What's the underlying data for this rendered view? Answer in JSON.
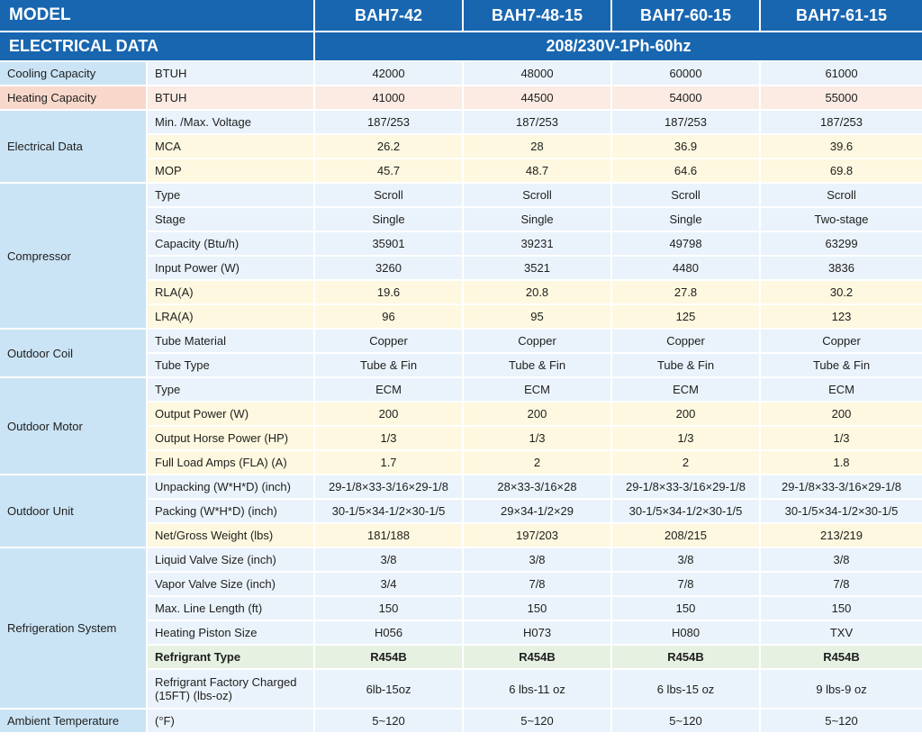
{
  "table": {
    "model_label": "MODEL",
    "models": [
      "BAH7-42",
      "BAH7-48-15",
      "BAH7-60-15",
      "BAH7-61-15"
    ],
    "electrical_label": "ELECTRICAL DATA",
    "electrical_value": "208/230V-1Ph-60hz",
    "groups": [
      {
        "name": "Cooling Capacity",
        "rows": [
          {
            "label": "BTUH",
            "values": [
              "42000",
              "48000",
              "60000",
              "61000"
            ]
          }
        ]
      },
      {
        "name": "Heating Capacity",
        "rows": [
          {
            "label": "BTUH",
            "values": [
              "41000",
              "44500",
              "54000",
              "55000"
            ]
          }
        ]
      },
      {
        "name": "Electrical Data",
        "rows": [
          {
            "label": "Min. /Max. Voltage",
            "values": [
              "187/253",
              "187/253",
              "187/253",
              "187/253"
            ]
          },
          {
            "label": "MCA",
            "values": [
              "26.2",
              "28",
              "36.9",
              "39.6"
            ]
          },
          {
            "label": "MOP",
            "values": [
              "45.7",
              "48.7",
              "64.6",
              "69.8"
            ]
          }
        ]
      },
      {
        "name": "Compressor",
        "rows": [
          {
            "label": "Type",
            "values": [
              "Scroll",
              "Scroll",
              "Scroll",
              "Scroll"
            ]
          },
          {
            "label": "Stage",
            "values": [
              "Single",
              "Single",
              "Single",
              "Two-stage"
            ]
          },
          {
            "label": "Capacity (Btu/h)",
            "values": [
              "35901",
              "39231",
              "49798",
              "63299"
            ]
          },
          {
            "label": "Input Power (W)",
            "values": [
              "3260",
              "3521",
              "4480",
              "3836"
            ]
          },
          {
            "label": "RLA(A)",
            "values": [
              "19.6",
              "20.8",
              "27.8",
              "30.2"
            ]
          },
          {
            "label": "LRA(A)",
            "values": [
              "96",
              "95",
              "125",
              "123"
            ]
          }
        ]
      },
      {
        "name": "Outdoor Coil",
        "rows": [
          {
            "label": "Tube Material",
            "values": [
              "Copper",
              "Copper",
              "Copper",
              "Copper"
            ]
          },
          {
            "label": "Tube Type",
            "values": [
              "Tube & Fin",
              "Tube & Fin",
              "Tube & Fin",
              "Tube & Fin"
            ]
          }
        ]
      },
      {
        "name": "Outdoor Motor",
        "rows": [
          {
            "label": "Type",
            "values": [
              "ECM",
              "ECM",
              "ECM",
              "ECM"
            ]
          },
          {
            "label": "Output Power (W)",
            "values": [
              "200",
              "200",
              "200",
              "200"
            ]
          },
          {
            "label": "Output Horse Power (HP)",
            "values": [
              "1/3",
              "1/3",
              "1/3",
              "1/3"
            ]
          },
          {
            "label": "Full Load Amps (FLA) (A)",
            "values": [
              "1.7",
              "2",
              "2",
              "1.8"
            ]
          }
        ]
      },
      {
        "name": "Outdoor Unit",
        "rows": [
          {
            "label": "Unpacking (W*H*D) (inch)",
            "values": [
              "29-1/8×33-3/16×29-1/8",
              "28×33-3/16×28",
              "29-1/8×33-3/16×29-1/8",
              "29-1/8×33-3/16×29-1/8"
            ]
          },
          {
            "label": "Packing  (W*H*D) (inch)",
            "values": [
              "30-1/5×34-1/2×30-1/5",
              "29×34-1/2×29",
              "30-1/5×34-1/2×30-1/5",
              "30-1/5×34-1/2×30-1/5"
            ]
          },
          {
            "label": "Net/Gross Weight  (lbs)",
            "values": [
              "181/188",
              "197/203",
              "208/215",
              "213/219"
            ]
          }
        ]
      },
      {
        "name": "Refrigeration System",
        "rows": [
          {
            "label": "Liquid Valve Size (inch)",
            "values": [
              "3/8",
              "3/8",
              "3/8",
              "3/8"
            ]
          },
          {
            "label": "Vapor Valve Size (inch)",
            "values": [
              "3/4",
              "7/8",
              "7/8",
              "7/8"
            ]
          },
          {
            "label": "Max. Line Length (ft)",
            "values": [
              "150",
              "150",
              "150",
              "150"
            ]
          },
          {
            "label": "Heating Piston Size",
            "values": [
              "H056",
              "H073",
              "H080",
              "TXV"
            ]
          },
          {
            "label": "Refrigrant Type",
            "values": [
              "R454B",
              "R454B",
              "R454B",
              "R454B"
            ]
          },
          {
            "label": "Refrigrant Factory Charged (15FT) (lbs-oz)",
            "values": [
              "6lb-15oz",
              "6 lbs-11 oz",
              "6 lbs-15 oz",
              "9 lbs-9 oz"
            ]
          }
        ]
      },
      {
        "name": "Ambient Temperature",
        "rows": [
          {
            "label": "(°F)",
            "values": [
              "5~120",
              "5~120",
              "5~120",
              "5~120"
            ]
          }
        ]
      }
    ]
  },
  "colors": {
    "header_blue": "#1866b0",
    "group_blue": "#cbe4f5",
    "group_heating": "#f9d8cc",
    "row_light_blue": "#eaf3fb",
    "row_cream": "#fdf8df",
    "row_pink": "#fbebe3",
    "row_green": "#e6f1e2"
  }
}
